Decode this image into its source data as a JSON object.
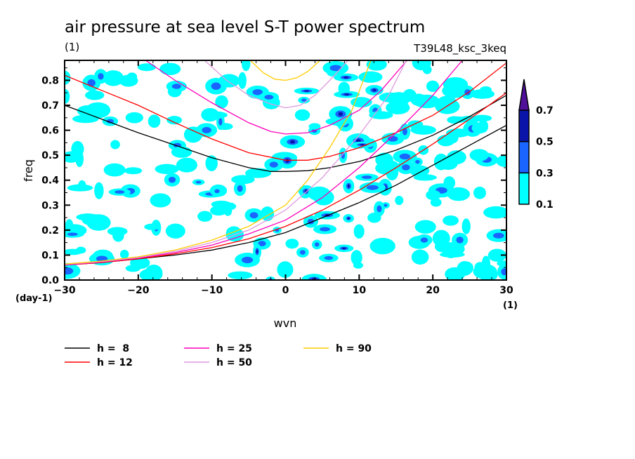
{
  "chart_data": {
    "type": "heatmap",
    "title": "air pressure at sea level S-T power spectrum",
    "subtitle_left": "(1)",
    "subtitle_right": "T39L48_ksc_3keq",
    "xlabel": "wvn",
    "ylabel": "freq",
    "x_unit": "(1)",
    "y_unit": "(day-1)",
    "xlim": [
      -30,
      30
    ],
    "ylim": [
      0.0,
      0.88
    ],
    "xticks": [
      -30,
      -20,
      -10,
      0,
      10,
      20,
      30
    ],
    "xtick_labels": [
      "-30",
      "-20",
      "-10",
      "0",
      "10",
      "20",
      "30"
    ],
    "yticks": [
      0.0,
      0.1,
      0.2,
      0.3,
      0.4,
      0.5,
      0.6,
      0.7,
      0.8
    ],
    "ytick_labels": [
      "0.0",
      "0.1",
      "0.2",
      "0.3",
      "0.4",
      "0.5",
      "0.6",
      "0.7",
      "0.8"
    ],
    "colorbar": {
      "levels": [
        "0.1",
        "0.3",
        "0.5",
        "0.7"
      ],
      "colors": [
        "#00ffff",
        "#1a64ff",
        "#0a14a8",
        "#50109a"
      ],
      "extend": "max"
    },
    "shading_note": "scattered contour patches of power mostly 0.1-0.3, with local maxima up to 0.7 concentrated near wvn 0-12",
    "dispersion_curves": [
      {
        "name": "h = 8",
        "equiv_depth": 8,
        "color": "#000000",
        "ig_branch": [
          [
            -30,
            0.7
          ],
          [
            -25,
            0.645
          ],
          [
            -20,
            0.59
          ],
          [
            -15,
            0.54
          ],
          [
            -10,
            0.49
          ],
          [
            -5,
            0.45
          ],
          [
            -2,
            0.435
          ],
          [
            0,
            0.435
          ],
          [
            3,
            0.438
          ],
          [
            6,
            0.45
          ],
          [
            10,
            0.475
          ],
          [
            15,
            0.52
          ],
          [
            20,
            0.58
          ],
          [
            25,
            0.655
          ],
          [
            30,
            0.74
          ]
        ],
        "kelvin_branch": [
          [
            -30,
            0.06
          ],
          [
            -25,
            0.07
          ],
          [
            -20,
            0.085
          ],
          [
            -15,
            0.1
          ],
          [
            -10,
            0.12
          ],
          [
            -5,
            0.15
          ],
          [
            0,
            0.19
          ],
          [
            5,
            0.25
          ],
          [
            10,
            0.31
          ],
          [
            15,
            0.38
          ],
          [
            20,
            0.46
          ],
          [
            25,
            0.54
          ],
          [
            30,
            0.62
          ]
        ]
      },
      {
        "name": "h = 12",
        "equiv_depth": 12,
        "color": "#ff0000",
        "ig_branch": [
          [
            -30,
            0.82
          ],
          [
            -25,
            0.76
          ],
          [
            -20,
            0.7
          ],
          [
            -15,
            0.63
          ],
          [
            -10,
            0.565
          ],
          [
            -5,
            0.51
          ],
          [
            0,
            0.48
          ],
          [
            3,
            0.48
          ],
          [
            6,
            0.495
          ],
          [
            10,
            0.53
          ],
          [
            15,
            0.59
          ],
          [
            20,
            0.66
          ],
          [
            25,
            0.755
          ],
          [
            30,
            0.87
          ]
        ],
        "kelvin_branch": [
          [
            -30,
            0.06
          ],
          [
            -25,
            0.07
          ],
          [
            -20,
            0.085
          ],
          [
            -15,
            0.105
          ],
          [
            -10,
            0.13
          ],
          [
            -5,
            0.165
          ],
          [
            0,
            0.215
          ],
          [
            5,
            0.28
          ],
          [
            10,
            0.36
          ],
          [
            15,
            0.45
          ],
          [
            20,
            0.545
          ],
          [
            25,
            0.645
          ],
          [
            30,
            0.75
          ]
        ]
      },
      {
        "name": "h = 25",
        "equiv_depth": 25,
        "color": "#ff00bb",
        "ig_branch": [
          [
            -19,
            0.88
          ],
          [
            -15,
            0.8
          ],
          [
            -10,
            0.71
          ],
          [
            -5,
            0.63
          ],
          [
            -2,
            0.595
          ],
          [
            0,
            0.585
          ],
          [
            3,
            0.59
          ],
          [
            6,
            0.62
          ],
          [
            10,
            0.68
          ],
          [
            13,
            0.76
          ],
          [
            16.5,
            0.88
          ]
        ],
        "kelvin_branch": [
          [
            -30,
            0.06
          ],
          [
            -25,
            0.072
          ],
          [
            -20,
            0.088
          ],
          [
            -15,
            0.11
          ],
          [
            -10,
            0.14
          ],
          [
            -5,
            0.185
          ],
          [
            0,
            0.24
          ],
          [
            5,
            0.33
          ],
          [
            10,
            0.45
          ],
          [
            15,
            0.59
          ],
          [
            20,
            0.74
          ],
          [
            24,
            0.88
          ]
        ]
      },
      {
        "name": "h = 50",
        "equiv_depth": 50,
        "color": "#dd99dd",
        "ig_branch": [
          [
            -11,
            0.88
          ],
          [
            -8,
            0.8
          ],
          [
            -5,
            0.74
          ],
          [
            -2,
            0.705
          ],
          [
            0,
            0.69
          ],
          [
            2,
            0.7
          ],
          [
            4,
            0.74
          ],
          [
            6,
            0.8
          ],
          [
            8.5,
            0.88
          ]
        ],
        "kelvin_branch": [
          [
            -30,
            0.062
          ],
          [
            -25,
            0.074
          ],
          [
            -20,
            0.09
          ],
          [
            -15,
            0.115
          ],
          [
            -10,
            0.15
          ],
          [
            -5,
            0.2
          ],
          [
            0,
            0.28
          ],
          [
            5,
            0.41
          ],
          [
            10,
            0.58
          ],
          [
            14,
            0.74
          ],
          [
            16.4,
            0.88
          ]
        ]
      },
      {
        "name": "h = 90",
        "equiv_depth": 90,
        "color": "#ffcc00",
        "ig_branch": [
          [
            -4.8,
            0.88
          ],
          [
            -3,
            0.83
          ],
          [
            -1.5,
            0.805
          ],
          [
            0,
            0.8
          ],
          [
            1.5,
            0.81
          ],
          [
            3,
            0.835
          ],
          [
            4.7,
            0.88
          ]
        ],
        "kelvin_branch": [
          [
            -30,
            0.064
          ],
          [
            -25,
            0.076
          ],
          [
            -20,
            0.093
          ],
          [
            -15,
            0.12
          ],
          [
            -10,
            0.16
          ],
          [
            -5,
            0.215
          ],
          [
            0,
            0.3
          ],
          [
            3,
            0.4
          ],
          [
            6,
            0.53
          ],
          [
            9,
            0.68
          ],
          [
            11.6,
            0.88
          ]
        ]
      }
    ]
  },
  "legend": {
    "items": [
      {
        "label": "h =  8",
        "color": "#000000"
      },
      {
        "label": "h = 12",
        "color": "#ff0000"
      },
      {
        "label": "h = 25",
        "color": "#ff00bb"
      },
      {
        "label": "h = 50",
        "color": "#dd99dd"
      },
      {
        "label": "h = 90",
        "color": "#ffcc00"
      }
    ]
  }
}
